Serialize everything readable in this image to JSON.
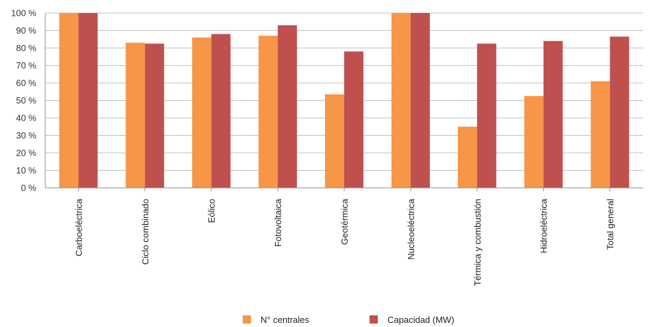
{
  "chart_data": {
    "type": "bar",
    "categories": [
      "Carboeléctrica",
      "Ciclo combinado",
      "Eólico",
      "Fotovoltaica",
      "Geotérmica",
      "Nucleoeléctrica",
      "Térmica y combustión",
      "Hidroeléctrica",
      "Total general"
    ],
    "series": [
      {
        "name": "N° centrales",
        "color": "#F79646",
        "values": [
          100,
          83,
          86,
          87,
          53.5,
          100,
          35,
          52.5,
          61
        ]
      },
      {
        "name": "Capacidad (MW)",
        "color": "#C0504D",
        "values": [
          100,
          82.5,
          88,
          93,
          78,
          100,
          82.5,
          84,
          86.5
        ]
      }
    ],
    "yticks": [
      "0 %",
      "10 %",
      "20 %",
      "30 %",
      "40 %",
      "50 %",
      "60 %",
      "70 %",
      "80 %",
      "90 %",
      "100 %"
    ],
    "ylim": [
      0,
      100
    ],
    "grid": true,
    "legend_position": "bottom"
  }
}
